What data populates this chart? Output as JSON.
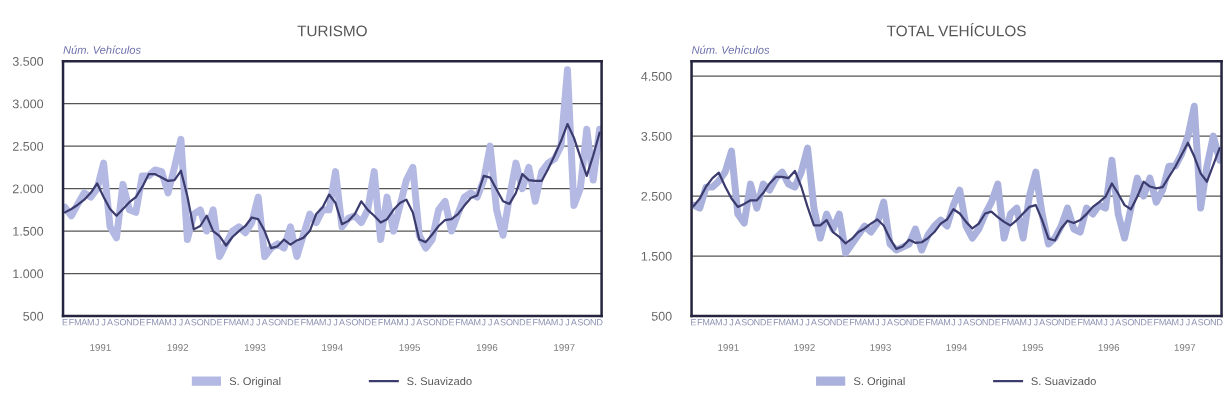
{
  "chart_data": [
    {
      "type": "line",
      "title": "TURISMO",
      "ylabel": "Núm. Vehículos",
      "categories": [
        "E",
        "F",
        "M",
        "A",
        "M",
        "J",
        "J",
        "A",
        "S",
        "O",
        "N",
        "D",
        "E",
        "F",
        "M",
        "A",
        "M",
        "J",
        "J",
        "A",
        "S",
        "O",
        "N",
        "D",
        "E",
        "F",
        "M",
        "A",
        "M",
        "J",
        "J",
        "A",
        "S",
        "O",
        "N",
        "D",
        "E",
        "F",
        "M",
        "A",
        "M",
        "J",
        "J",
        "A",
        "S",
        "O",
        "N",
        "D",
        "E",
        "F",
        "M",
        "A",
        "M",
        "J",
        "J",
        "A",
        "S",
        "O",
        "N",
        "D",
        "E",
        "F",
        "M",
        "A",
        "M",
        "J",
        "J",
        "A",
        "S",
        "O",
        "N",
        "D",
        "E",
        "F",
        "M",
        "A",
        "M",
        "J",
        "J",
        "A",
        "S",
        "O",
        "N",
        "D"
      ],
      "series": [
        {
          "name": "S. Original",
          "color": "#b3b9e2",
          "values": [
            1780,
            1680,
            1820,
            1950,
            1900,
            2000,
            2300,
            1550,
            1420,
            2050,
            1750,
            1720,
            2150,
            2150,
            2220,
            2200,
            1950,
            2250,
            2580,
            1400,
            1700,
            1750,
            1500,
            1750,
            1200,
            1350,
            1500,
            1550,
            1480,
            1600,
            1900,
            1200,
            1300,
            1350,
            1300,
            1550,
            1200,
            1450,
            1700,
            1600,
            1750,
            1750,
            2200,
            1550,
            1650,
            1680,
            1600,
            1750,
            2200,
            1400,
            1900,
            1500,
            1800,
            2100,
            2250,
            1450,
            1300,
            1400,
            1750,
            1850,
            1500,
            1700,
            1900,
            1950,
            1900,
            2100,
            2500,
            1750,
            1450,
            1900,
            2300,
            2000,
            2250,
            1850,
            2200,
            2300,
            2350,
            2500,
            3400,
            1800,
            2000,
            2700,
            2100,
            2700
          ]
        },
        {
          "name": "S. Suavizado",
          "color": "#3b3b6e",
          "values": [
            1720,
            1760,
            1810,
            1870,
            1950,
            2060,
            1900,
            1760,
            1680,
            1760,
            1840,
            1900,
            2020,
            2170,
            2170,
            2130,
            2090,
            2100,
            2210,
            1910,
            1520,
            1560,
            1680,
            1500,
            1440,
            1330,
            1430,
            1500,
            1560,
            1660,
            1640,
            1500,
            1300,
            1320,
            1400,
            1340,
            1390,
            1420,
            1500,
            1700,
            1780,
            1930,
            1830,
            1580,
            1620,
            1700,
            1850,
            1750,
            1680,
            1600,
            1640,
            1750,
            1830,
            1870,
            1720,
            1400,
            1370,
            1460,
            1560,
            1630,
            1640,
            1700,
            1800,
            1890,
            1920,
            2150,
            2130,
            1990,
            1850,
            1820,
            1950,
            2170,
            2100,
            2090,
            2090,
            2230,
            2390,
            2560,
            2760,
            2600,
            2370,
            2150,
            2390,
            2660
          ]
        }
      ],
      "ylim": [
        500,
        3500
      ],
      "yticks": [
        500,
        {
          "value": 1000,
          "label": "1.000"
        },
        {
          "value": 1500,
          "label": "1.500"
        },
        {
          "value": 2000,
          "label": "2.000"
        },
        {
          "value": 2500,
          "label": "2.500"
        },
        {
          "value": 3000,
          "label": "3.000"
        },
        {
          "value": 3500,
          "label": "3.500"
        }
      ],
      "grid": "y",
      "legend": "bottom",
      "marker": "none",
      "line_style": "solid",
      "annotations": [
        "1991",
        "1992",
        "1993",
        "1994",
        "1995",
        "1996",
        "1997"
      ]
    },
    {
      "type": "line",
      "title": "TOTAL VEHÍCULOS",
      "ylabel": "Núm. Vehículos",
      "categories": [
        "E",
        "F",
        "M",
        "A",
        "M",
        "J",
        "J",
        "A",
        "S",
        "O",
        "N",
        "D",
        "E",
        "F",
        "M",
        "A",
        "M",
        "J",
        "J",
        "A",
        "S",
        "O",
        "N",
        "D",
        "E",
        "F",
        "M",
        "A",
        "M",
        "J",
        "J",
        "A",
        "S",
        "O",
        "N",
        "D",
        "E",
        "F",
        "M",
        "A",
        "M",
        "J",
        "J",
        "A",
        "S",
        "O",
        "N",
        "D",
        "E",
        "F",
        "M",
        "A",
        "M",
        "J",
        "J",
        "A",
        "S",
        "O",
        "N",
        "D",
        "E",
        "F",
        "M",
        "A",
        "M",
        "J",
        "J",
        "A",
        "S",
        "O",
        "N",
        "D",
        "E",
        "F",
        "M",
        "A",
        "M",
        "J",
        "J",
        "A",
        "S",
        "O",
        "N",
        "D"
      ],
      "series": [
        {
          "name": "S. Original",
          "color": "#aab1dc",
          "values": [
            2350,
            2300,
            2650,
            2650,
            2750,
            2900,
            3250,
            2200,
            2050,
            2700,
            2300,
            2700,
            2600,
            2800,
            2900,
            2700,
            2650,
            2900,
            3300,
            2300,
            1800,
            2200,
            1950,
            2200,
            1550,
            1700,
            1850,
            2000,
            1900,
            2050,
            2400,
            1700,
            1600,
            1650,
            1700,
            1950,
            1600,
            1850,
            2000,
            2100,
            2000,
            2350,
            2600,
            2000,
            1800,
            1950,
            2200,
            2400,
            2700,
            1800,
            2200,
            2300,
            1800,
            2500,
            2900,
            2200,
            1700,
            1800,
            2000,
            2300,
            1950,
            1900,
            2300,
            2200,
            2350,
            2300,
            3100,
            2200,
            1800,
            2300,
            2800,
            2500,
            2800,
            2400,
            2600,
            3000,
            3000,
            3200,
            3500,
            4000,
            2300,
            3000,
            3500,
            3100
          ]
        },
        {
          "name": "S. Suavizado",
          "color": "#3b3b6e",
          "values": [
            2330,
            2460,
            2660,
            2800,
            2890,
            2660,
            2460,
            2320,
            2370,
            2430,
            2430,
            2550,
            2710,
            2820,
            2820,
            2800,
            2920,
            2660,
            2320,
            2010,
            2010,
            2100,
            1900,
            1820,
            1710,
            1790,
            1900,
            1960,
            2040,
            2110,
            2010,
            1790,
            1620,
            1660,
            1770,
            1720,
            1730,
            1800,
            1900,
            2040,
            2110,
            2280,
            2210,
            2070,
            1960,
            2040,
            2210,
            2240,
            2150,
            2070,
            2010,
            2100,
            2210,
            2320,
            2350,
            2100,
            1790,
            1760,
            1960,
            2090,
            2050,
            2100,
            2200,
            2320,
            2400,
            2490,
            2710,
            2540,
            2350,
            2280,
            2490,
            2740,
            2660,
            2630,
            2650,
            2820,
            2990,
            3190,
            3390,
            3160,
            2880,
            2740,
            3020,
            3300
          ]
        }
      ],
      "ylim": [
        500,
        4750
      ],
      "yticks": [
        500,
        {
          "value": 1500,
          "label": "1.500"
        },
        {
          "value": 2500,
          "label": "2.500"
        },
        {
          "value": 3500,
          "label": "3.500"
        },
        {
          "value": 4500,
          "label": "4.500"
        }
      ],
      "grid": "y",
      "legend": "bottom",
      "marker": "none",
      "line_style": "solid",
      "annotations": [
        "1991",
        "1992",
        "1993",
        "1994",
        "1995",
        "1996",
        "1997"
      ]
    }
  ]
}
